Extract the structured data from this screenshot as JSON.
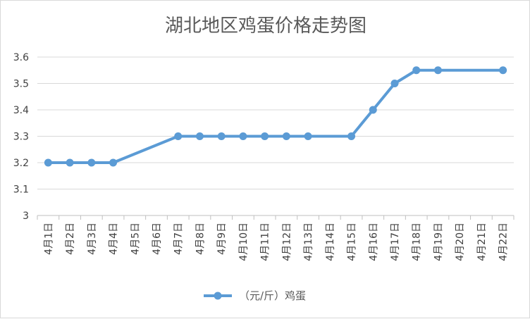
{
  "chart_data": {
    "type": "line",
    "title": "湖北地区鸡蛋价格走势图",
    "xlabel": "",
    "ylabel": "",
    "categories": [
      "4月1日",
      "4月2日",
      "4月3日",
      "4月4日",
      "4月5日",
      "4月6日",
      "4月7日",
      "4月8日",
      "4月9日",
      "4月10日",
      "4月11日",
      "4月12日",
      "4月13日",
      "4月14日",
      "4月15日",
      "4月16日",
      "4月17日",
      "4月18日",
      "4月19日",
      "4月20日",
      "4月21日",
      "4月22日"
    ],
    "series": [
      {
        "name": "（元/斤）鸡蛋",
        "values": [
          3.2,
          3.2,
          3.2,
          3.2,
          null,
          null,
          3.3,
          3.3,
          3.3,
          3.3,
          3.3,
          3.3,
          3.3,
          null,
          3.3,
          3.4,
          3.5,
          3.55,
          3.55,
          null,
          null,
          3.55
        ],
        "color": "#5b9bd5"
      }
    ],
    "ylim": [
      3,
      3.6
    ],
    "yticks": [
      "3",
      "3.1",
      "3.2",
      "3.3",
      "3.4",
      "3.5",
      "3.6"
    ],
    "grid": true,
    "legend": "bottom"
  }
}
